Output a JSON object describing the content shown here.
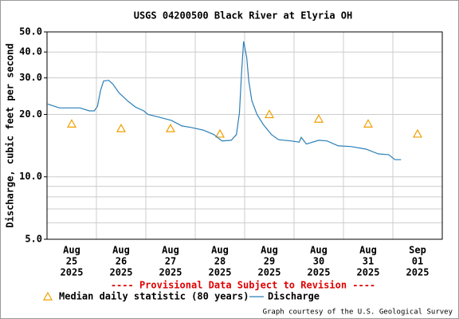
{
  "chart_data": {
    "type": "line",
    "title": "USGS 04200500 Black River at Elyria OH",
    "ylabel": "Discharge, cubic feet per second",
    "annotation": "---- Provisional Data Subject to Revision ----",
    "credit": "Graph courtesy of the U.S. Geological Survey",
    "log_y": true,
    "grid": true,
    "ylim": [
      5,
      50
    ],
    "yticks": [
      {
        "value": 5,
        "label": "5.0"
      },
      {
        "value": 10,
        "label": "10.0"
      },
      {
        "value": 20,
        "label": "20.0"
      },
      {
        "value": 30,
        "label": "30.0"
      },
      {
        "value": 40,
        "label": "40.0"
      },
      {
        "value": 50,
        "label": "50.0"
      }
    ],
    "minor_yticks": [
      6,
      7,
      8,
      9
    ],
    "xlim": [
      "2025-08-25",
      "2025-09-02"
    ],
    "xgrid": [
      "2025-08-26",
      "2025-08-27",
      "2025-08-28",
      "2025-08-29",
      "2025-08-30",
      "2025-08-31",
      "2025-09-01"
    ],
    "categories": [
      [
        "Aug",
        "25",
        "2025"
      ],
      [
        "Aug",
        "26",
        "2025"
      ],
      [
        "Aug",
        "27",
        "2025"
      ],
      [
        "Aug",
        "28",
        "2025"
      ],
      [
        "Aug",
        "29",
        "2025"
      ],
      [
        "Aug",
        "30",
        "2025"
      ],
      [
        "Aug",
        "31",
        "2025"
      ],
      [
        "Sep",
        "01",
        "2025"
      ]
    ],
    "series": [
      {
        "name": "Median daily statistic (80 years)",
        "color": "#f0a000",
        "marker": "triangle",
        "values": [
          18.0,
          17.1,
          17.1,
          16.1,
          20.0,
          19.0,
          18.0,
          16.1
        ]
      },
      {
        "name": "Discharge",
        "color": "#2a7fb8",
        "marker": "line",
        "x": [
          "2025-08-25T00:00",
          "2025-08-25T06:00",
          "2025-08-25T16:00",
          "2025-08-25T20:30",
          "2025-08-25T23:00",
          "2025-08-26T00:30",
          "2025-08-26T02:00",
          "2025-08-26T03:30",
          "2025-08-26T06:00",
          "2025-08-26T08:00",
          "2025-08-26T11:00",
          "2025-08-26T15:00",
          "2025-08-26T19:00",
          "2025-08-26T23:00",
          "2025-08-27T01:00",
          "2025-08-27T06:30",
          "2025-08-27T12:30",
          "2025-08-27T17:30",
          "2025-08-27T22:00",
          "2025-08-28T04:00",
          "2025-08-28T09:00",
          "2025-08-28T13:00",
          "2025-08-28T17:30",
          "2025-08-28T20:00",
          "2025-08-28T21:30",
          "2025-08-28T22:30",
          "2025-08-28T23:30",
          "2025-08-29T01:00",
          "2025-08-29T02:00",
          "2025-08-29T03:30",
          "2025-08-29T06:00",
          "2025-08-29T09:00",
          "2025-08-29T13:00",
          "2025-08-29T16:30",
          "2025-08-29T22:30",
          "2025-08-30T02:30",
          "2025-08-30T03:30",
          "2025-08-30T06:00",
          "2025-08-30T12:00",
          "2025-08-30T16:00",
          "2025-08-30T21:30",
          "2025-08-31T03:30",
          "2025-08-31T11:00",
          "2025-08-31T17:00",
          "2025-08-31T22:00",
          "2025-09-01T01:00",
          "2025-09-01T04:00"
        ],
        "values": [
          22.5,
          21.5,
          21.5,
          20.8,
          20.8,
          21.9,
          26.1,
          29.0,
          29.2,
          28.0,
          25.4,
          23.3,
          21.7,
          20.8,
          20.0,
          19.4,
          18.7,
          17.6,
          17.3,
          16.8,
          16.0,
          14.9,
          15.0,
          16.0,
          20.4,
          31.7,
          45.0,
          37.7,
          29.0,
          23.3,
          20.0,
          17.9,
          16.0,
          15.1,
          14.9,
          14.7,
          15.5,
          14.4,
          15.0,
          14.9,
          14.1,
          14.0,
          13.6,
          12.9,
          12.8,
          12.1,
          12.1
        ]
      }
    ]
  }
}
